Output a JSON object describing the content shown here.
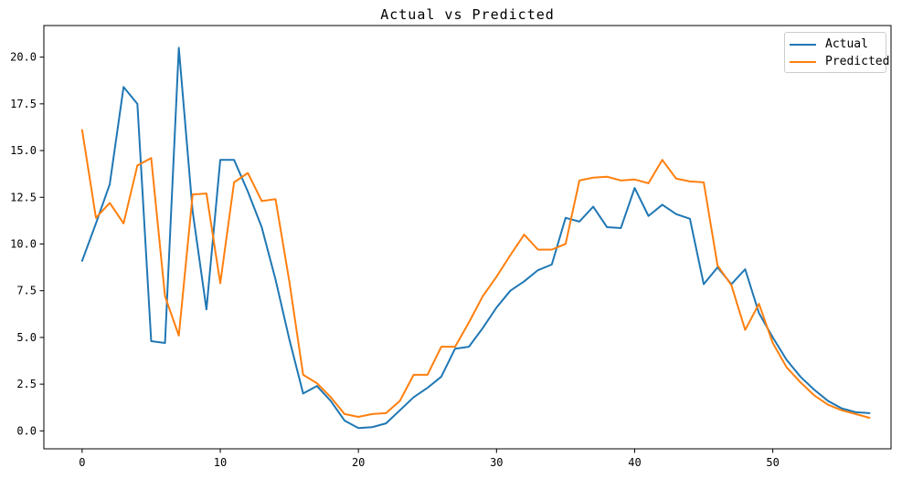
{
  "chart_data": {
    "type": "line",
    "title": "Actual vs Predicted",
    "xlabel": "",
    "ylabel": "",
    "x": [
      0,
      1,
      2,
      3,
      4,
      5,
      6,
      7,
      8,
      9,
      10,
      11,
      12,
      13,
      14,
      15,
      16,
      17,
      18,
      19,
      20,
      21,
      22,
      23,
      24,
      25,
      26,
      27,
      28,
      29,
      30,
      31,
      32,
      33,
      34,
      35,
      36,
      37,
      38,
      39,
      40,
      41,
      42,
      43,
      44,
      45,
      46,
      47,
      48,
      49,
      50,
      51,
      52,
      53,
      54,
      55,
      56,
      57
    ],
    "series": [
      {
        "name": "Actual",
        "color": "#1f77b4",
        "values": [
          9.1,
          11.1,
          13.2,
          18.4,
          17.5,
          4.8,
          4.7,
          20.5,
          11.75,
          6.5,
          14.5,
          14.5,
          12.8,
          10.9,
          8.1,
          4.9,
          2.0,
          2.4,
          1.6,
          0.55,
          0.15,
          0.2,
          0.4,
          1.1,
          1.8,
          2.3,
          2.9,
          4.4,
          4.5,
          5.5,
          6.6,
          7.5,
          8.0,
          8.6,
          8.9,
          11.4,
          11.2,
          12.0,
          10.9,
          10.85,
          13.0,
          11.5,
          12.1,
          11.6,
          11.35,
          7.85,
          8.75,
          7.85,
          8.65,
          6.3,
          5.0,
          3.8,
          2.9,
          2.2,
          1.6,
          1.2,
          1.0,
          0.95
        ]
      },
      {
        "name": "Predicted",
        "color": "#ff7f0e",
        "values": [
          16.1,
          11.4,
          12.2,
          11.1,
          14.2,
          14.6,
          7.2,
          5.1,
          12.65,
          12.7,
          7.9,
          13.3,
          13.8,
          12.3,
          12.4,
          8.0,
          3.0,
          2.55,
          1.8,
          0.9,
          0.75,
          0.9,
          0.95,
          1.6,
          3.0,
          3.0,
          4.5,
          4.5,
          5.8,
          7.2,
          8.25,
          9.4,
          10.5,
          9.7,
          9.7,
          10.0,
          13.4,
          13.55,
          13.6,
          13.4,
          13.45,
          13.25,
          14.5,
          13.5,
          13.35,
          13.3,
          8.85,
          7.8,
          5.4,
          6.8,
          4.7,
          3.4,
          2.6,
          1.9,
          1.4,
          1.1,
          0.9,
          0.7
        ]
      }
    ],
    "xlim": [
      -2.77,
      58.56
    ],
    "ylim": [
      -0.96,
      21.69
    ],
    "xticks": [
      0,
      10,
      20,
      30,
      40,
      50
    ],
    "yticks": [
      0.0,
      2.5,
      5.0,
      7.5,
      10.0,
      12.5,
      15.0,
      17.5,
      20.0
    ],
    "grid": false,
    "legend_position": "upper right"
  },
  "figure": {
    "background": "#ffffff",
    "spine_color": "#000000",
    "tick_color": "#000000",
    "tick_label_color": "#000000",
    "line_width": 2
  }
}
